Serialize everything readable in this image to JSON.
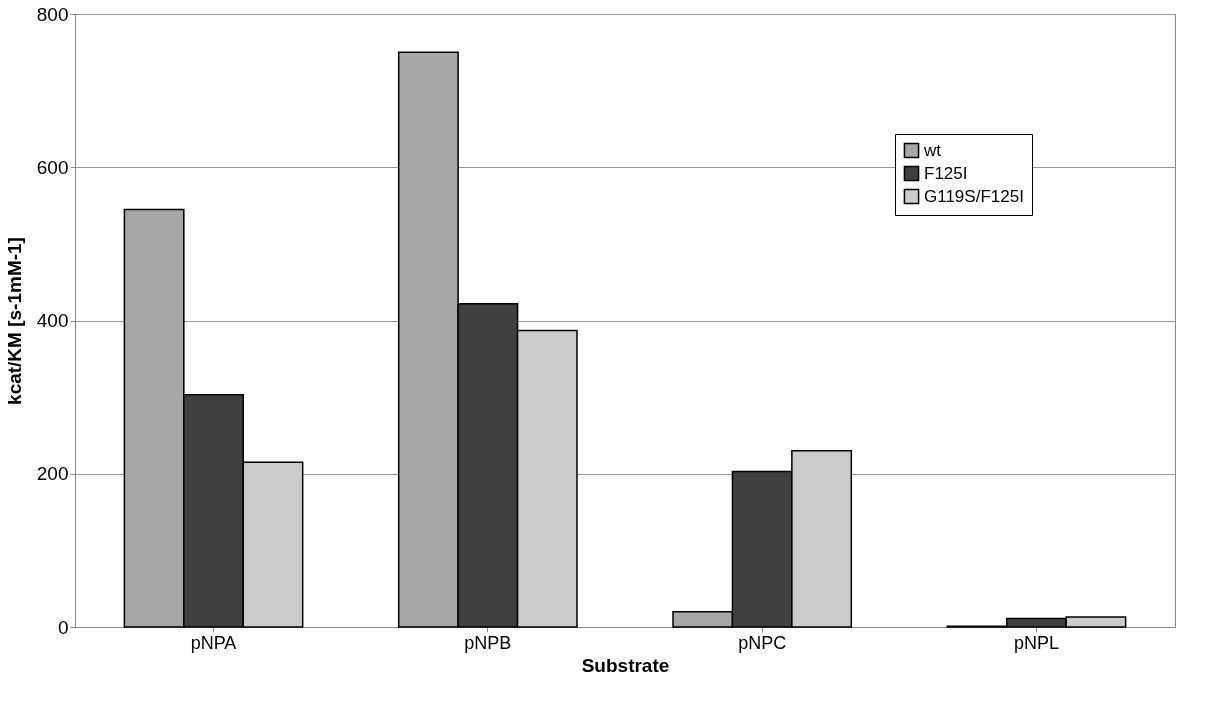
{
  "chart_data": {
    "type": "bar",
    "xlabel": "Substrate",
    "ylabel": "kcat/KM [s-1mM-1]",
    "categories": [
      "pNPA",
      "pNPB",
      "pNPC",
      "pNPL"
    ],
    "series": [
      {
        "name": "wt",
        "color": "#a6a6a6",
        "values": [
          545,
          750,
          20,
          1
        ]
      },
      {
        "name": "F125I",
        "color": "#404040",
        "values": [
          303,
          422,
          203,
          11
        ]
      },
      {
        "name": "G119S/F125I",
        "color": "#cccccc",
        "values": [
          215,
          387,
          230,
          13
        ]
      }
    ],
    "ylim": [
      0,
      800
    ],
    "yticks": [
      0,
      200,
      400,
      600,
      800
    ],
    "grid": "y",
    "legend": "right"
  }
}
